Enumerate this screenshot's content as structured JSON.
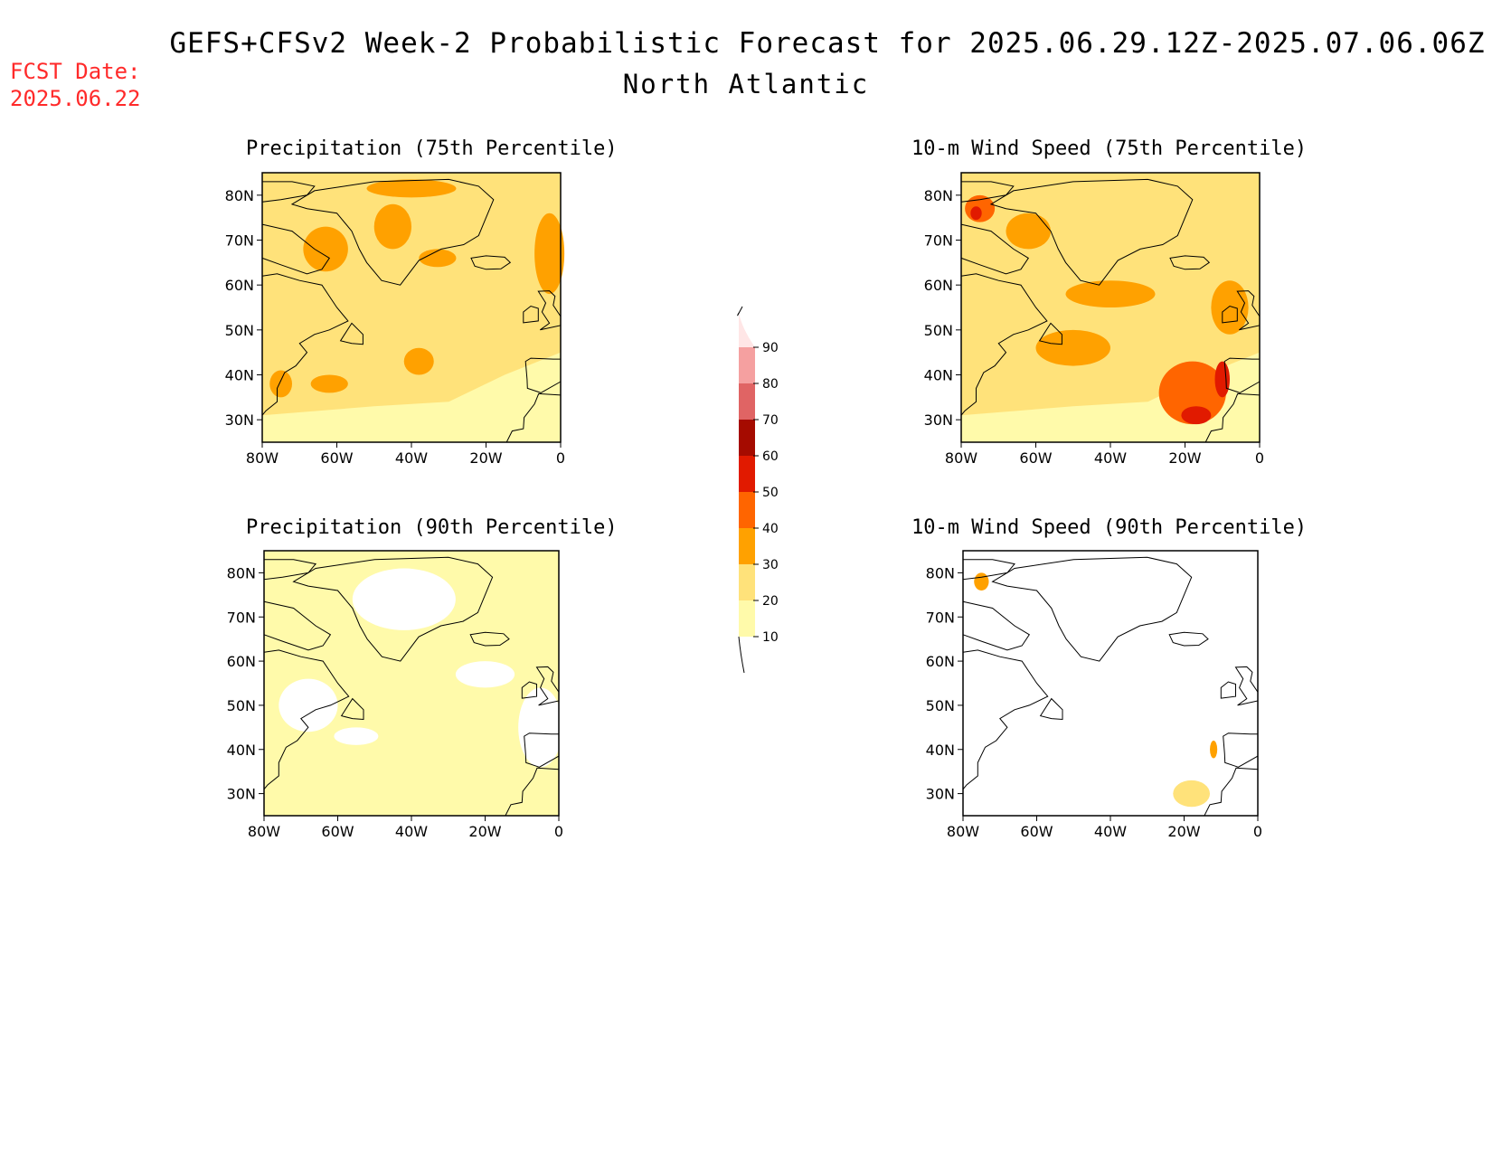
{
  "header": {
    "title": "GEFS+CFSv2 Week-2 Probabilistic Forecast for 2025.06.29.12Z-2025.07.06.06Z",
    "region": "North Atlantic"
  },
  "fcst_date": {
    "label": "FCST Date:",
    "value": "2025.06.22"
  },
  "axes": {
    "lat_ticks": [
      "80N",
      "70N",
      "60N",
      "50N",
      "40N",
      "30N"
    ],
    "lon_ticks": [
      "80W",
      "60W",
      "40W",
      "20W",
      "0"
    ]
  },
  "panels": [
    {
      "title": "Precipitation (75th Percentile)",
      "dominant_level": 20
    },
    {
      "title": "10-m Wind Speed (75th Percentile)",
      "dominant_level": 20
    },
    {
      "title": "Precipitation (90th Percentile)",
      "dominant_level": 10
    },
    {
      "title": "10-m Wind Speed (90th Percentile)",
      "dominant_level": 0
    }
  ],
  "colorbar": {
    "levels": [
      "10",
      "20",
      "30",
      "40",
      "50",
      "60",
      "70",
      "80",
      "90"
    ],
    "colors": [
      "#fffaaa",
      "#ffe27a",
      "#ffa100",
      "#ff6500",
      "#e11a00",
      "#a50b00",
      "#e06464",
      "#f5a0a0",
      "#ffe6e6"
    ]
  }
}
